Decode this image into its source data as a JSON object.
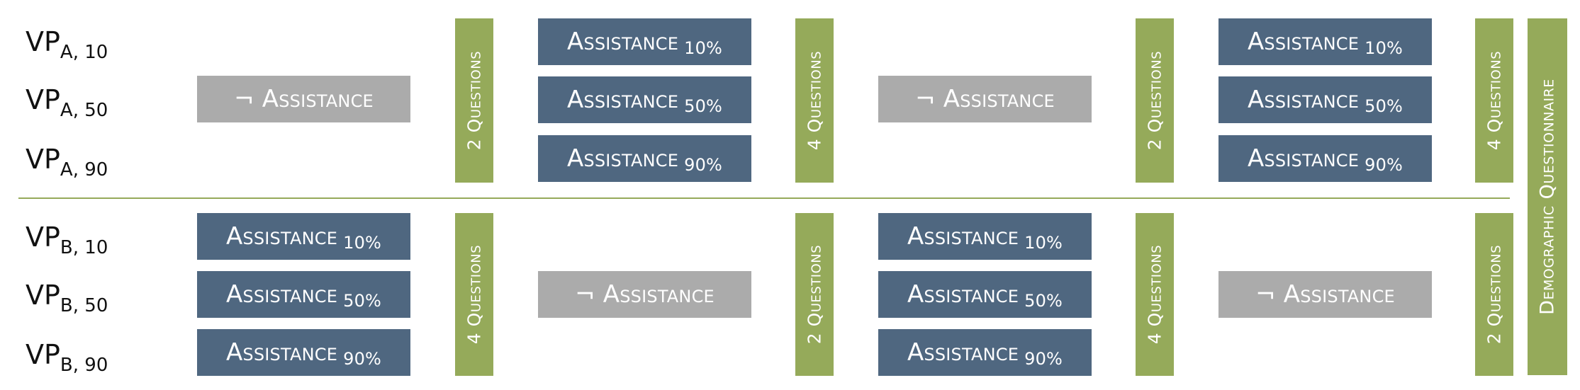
{
  "rows": {
    "a10": {
      "vp": "VP",
      "sub": "A, 10"
    },
    "a50": {
      "vp": "VP",
      "sub": "A, 50"
    },
    "a90": {
      "vp": "VP",
      "sub": "A, 90"
    },
    "b10": {
      "vp": "VP",
      "sub": "B, 10"
    },
    "b50": {
      "vp": "VP",
      "sub": "B, 50"
    },
    "b90": {
      "vp": "VP",
      "sub": "B, 90"
    }
  },
  "labels": {
    "assistance": "Assistance",
    "no_assistance": "¬ Assistance",
    "pct10": "10%",
    "pct50": "50%",
    "pct90": "90%",
    "q2": "2 Questions",
    "q4": "4 Questions",
    "demographic": "Demographic Questionnaire"
  },
  "colors": {
    "assistance_box": "#4f6780",
    "no_assistance_box": "#ababab",
    "questions_bar": "#95aa5a",
    "divider": "#95aa5a"
  }
}
